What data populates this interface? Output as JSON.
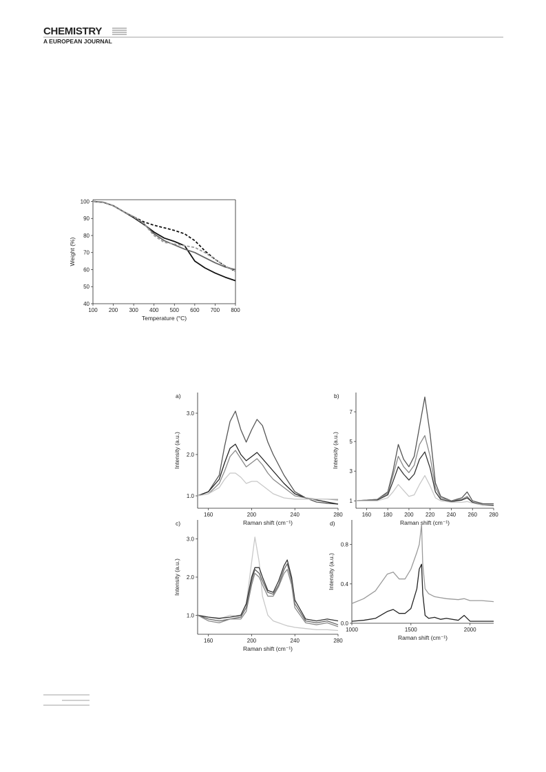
{
  "header": {
    "journal": "CHEMISTRY",
    "subtitle": "A EUROPEAN JOURNAL"
  },
  "chart_data": [
    {
      "type": "line",
      "x_label": "Temperature (°C)",
      "y_label": "Weight (%)",
      "x": [
        100,
        150,
        200,
        250,
        300,
        350,
        400,
        450,
        500,
        550,
        600,
        650,
        700,
        750,
        800
      ],
      "xlim": [
        100,
        800
      ],
      "ylim": [
        40,
        101
      ],
      "xticks": [
        100,
        200,
        300,
        400,
        500,
        600,
        700,
        800
      ],
      "yticks": [
        40,
        50,
        60,
        70,
        80,
        90,
        100
      ],
      "series": [
        {
          "color": "#111111",
          "style": "dashed",
          "values": [
            100,
            99.5,
            97.5,
            94,
            91,
            88,
            86,
            84.5,
            83,
            81,
            77,
            71,
            66,
            62,
            59
          ]
        },
        {
          "color": "#111111",
          "style": "solid",
          "values": [
            100,
            99.5,
            97.5,
            94,
            90.5,
            86.5,
            82,
            78.5,
            76.5,
            74,
            65,
            61,
            58,
            55.5,
            53.5
          ]
        },
        {
          "color": "#666666",
          "style": "solid",
          "values": [
            100,
            99.5,
            97.5,
            94,
            91,
            87,
            81,
            77,
            74.5,
            72,
            70,
            67,
            64,
            61.5,
            60
          ]
        },
        {
          "color": "#999999",
          "style": "dashed",
          "values": [
            100,
            99.5,
            97.5,
            94,
            91,
            87,
            80,
            76,
            75,
            74,
            73,
            70,
            66,
            62,
            59
          ]
        }
      ]
    },
    {
      "type": "line",
      "annotation": "a)",
      "x_label": "Raman shift (cm⁻¹)",
      "y_label": "Intensity (a.u.)",
      "x": [
        150,
        160,
        170,
        175,
        180,
        185,
        190,
        195,
        200,
        205,
        210,
        215,
        220,
        230,
        240,
        250,
        260,
        270,
        280
      ],
      "xlim": [
        150,
        280
      ],
      "ylim": [
        0.7,
        3.5
      ],
      "xticks": [
        160,
        200,
        240,
        280
      ],
      "yticks": [
        {
          "value": 1,
          "label": "1.0"
        },
        {
          "value": 2,
          "label": "2.0"
        },
        {
          "value": 3,
          "label": "3.0"
        }
      ],
      "series": [
        {
          "color": "#555555",
          "style": "solid",
          "values": [
            1.0,
            1.1,
            1.5,
            2.2,
            2.8,
            3.05,
            2.6,
            2.3,
            2.6,
            2.85,
            2.7,
            2.3,
            2.0,
            1.5,
            1.1,
            0.95,
            0.85,
            0.82,
            0.8
          ]
        },
        {
          "color": "#222222",
          "style": "solid",
          "values": [
            1.0,
            1.1,
            1.4,
            1.8,
            2.15,
            2.25,
            2.0,
            1.85,
            1.95,
            2.05,
            1.9,
            1.75,
            1.6,
            1.3,
            1.05,
            0.95,
            0.9,
            0.85,
            0.8
          ]
        },
        {
          "color": "#888888",
          "style": "solid",
          "values": [
            1.0,
            1.05,
            1.3,
            1.6,
            1.95,
            2.1,
            1.9,
            1.7,
            1.8,
            1.9,
            1.75,
            1.55,
            1.4,
            1.2,
            1.0,
            0.95,
            0.92,
            0.92,
            0.9
          ]
        },
        {
          "color": "#c8c8c8",
          "style": "solid",
          "values": [
            1.0,
            1.05,
            1.2,
            1.4,
            1.55,
            1.55,
            1.45,
            1.3,
            1.35,
            1.35,
            1.25,
            1.15,
            1.05,
            0.95,
            0.92,
            0.92,
            0.92,
            0.92,
            0.92
          ]
        }
      ]
    },
    {
      "type": "line",
      "annotation": "b)",
      "x_label": "Raman shift (cm⁻¹)",
      "y_label": "Intensity (a.u.)",
      "x": [
        150,
        170,
        180,
        185,
        190,
        195,
        200,
        205,
        210,
        215,
        220,
        225,
        230,
        240,
        250,
        255,
        260,
        270,
        280
      ],
      "xlim": [
        150,
        280
      ],
      "ylim": [
        0.5,
        8.3
      ],
      "xticks": [
        160,
        180,
        200,
        220,
        240,
        260,
        280
      ],
      "yticks": [
        1,
        3,
        5,
        7
      ],
      "series": [
        {
          "color": "#555555",
          "style": "solid",
          "values": [
            1,
            1.1,
            1.6,
            3,
            4.8,
            3.8,
            3.3,
            4.0,
            6,
            8.0,
            5.5,
            2.2,
            1.3,
            1.0,
            1.2,
            1.6,
            1.0,
            0.8,
            0.8
          ]
        },
        {
          "color": "#888888",
          "style": "solid",
          "values": [
            1,
            1.1,
            1.5,
            2.7,
            4.0,
            3.3,
            2.9,
            3.4,
            4.8,
            5.4,
            4.0,
            1.9,
            1.2,
            1.0,
            1.1,
            1.3,
            0.9,
            0.75,
            0.7
          ]
        },
        {
          "color": "#333333",
          "style": "solid",
          "values": [
            1,
            1.05,
            1.4,
            2.3,
            3.3,
            2.8,
            2.4,
            2.8,
            3.8,
            4.3,
            3.2,
            1.6,
            1.1,
            0.95,
            1.05,
            1.2,
            0.9,
            0.7,
            0.7
          ]
        },
        {
          "color": "#c8c8c8",
          "style": "solid",
          "values": [
            1,
            1.0,
            1.2,
            1.6,
            2.1,
            1.7,
            1.3,
            1.4,
            2.1,
            2.7,
            2.0,
            1.2,
            1.0,
            0.9,
            0.9,
            0.95,
            0.85,
            0.7,
            0.65
          ]
        }
      ]
    },
    {
      "type": "line",
      "annotation": "c)",
      "x_label": "Raman shift (cm⁻¹)",
      "y_label": "Intensity (a.u.)",
      "x": [
        150,
        160,
        170,
        180,
        190,
        195,
        200,
        203,
        207,
        210,
        215,
        220,
        225,
        230,
        233,
        237,
        240,
        250,
        260,
        270,
        280
      ],
      "xlim": [
        150,
        280
      ],
      "ylim": [
        0.5,
        3.5
      ],
      "xticks": [
        160,
        200,
        240,
        280
      ],
      "yticks": [
        {
          "value": 1,
          "label": "1.0"
        },
        {
          "value": 2,
          "label": "2.0"
        },
        {
          "value": 3,
          "label": "3.0"
        }
      ],
      "series": [
        {
          "color": "#c8c8c8",
          "style": "solid",
          "values": [
            1.0,
            0.95,
            0.9,
            1.0,
            0.95,
            1.3,
            2.4,
            3.05,
            2.4,
            1.5,
            1.0,
            0.85,
            0.8,
            0.75,
            0.72,
            0.7,
            0.68,
            0.65,
            0.62,
            0.62,
            0.6
          ]
        },
        {
          "color": "#333333",
          "style": "solid",
          "values": [
            1.0,
            0.95,
            0.92,
            0.95,
            1.0,
            1.3,
            2.0,
            2.25,
            2.25,
            2.0,
            1.65,
            1.6,
            1.9,
            2.3,
            2.45,
            2.0,
            1.4,
            0.9,
            0.85,
            0.9,
            0.85
          ]
        },
        {
          "color": "#666666",
          "style": "solid",
          "values": [
            1.0,
            0.9,
            0.85,
            0.9,
            0.95,
            1.2,
            1.9,
            2.2,
            2.1,
            1.9,
            1.6,
            1.55,
            1.8,
            2.2,
            2.35,
            1.9,
            1.3,
            0.85,
            0.8,
            0.85,
            0.75
          ]
        },
        {
          "color": "#888888",
          "style": "solid",
          "values": [
            1.0,
            0.85,
            0.8,
            0.9,
            0.9,
            1.1,
            1.8,
            2.1,
            2.0,
            1.8,
            1.5,
            1.5,
            1.75,
            2.1,
            2.2,
            1.8,
            1.2,
            0.8,
            0.75,
            0.8,
            0.7
          ]
        }
      ]
    },
    {
      "type": "line",
      "annotation": "d)",
      "x_label": "Raman shift (cm⁻¹)",
      "y_label": "Intensity (a.u.)",
      "x": [
        1000,
        1100,
        1200,
        1300,
        1350,
        1400,
        1450,
        1500,
        1550,
        1570,
        1590,
        1600,
        1620,
        1650,
        1700,
        1750,
        1800,
        1900,
        1950,
        2000,
        2100,
        2200
      ],
      "xlim": [
        1000,
        2200
      ],
      "ylim": [
        0,
        1.05
      ],
      "xticks": [
        1000,
        1500,
        2000
      ],
      "yticks": [
        {
          "value": 0,
          "label": "0.0"
        },
        {
          "value": 0.4,
          "label": "0.4"
        },
        {
          "value": 0.8,
          "label": "0.8"
        }
      ],
      "series": [
        {
          "color": "#9a9a9a",
          "style": "solid",
          "values": [
            0.2,
            0.25,
            0.33,
            0.5,
            0.52,
            0.45,
            0.45,
            0.55,
            0.72,
            0.8,
            1.0,
            0.6,
            0.35,
            0.3,
            0.27,
            0.26,
            0.25,
            0.24,
            0.25,
            0.23,
            0.23,
            0.22
          ]
        },
        {
          "color": "#222222",
          "style": "solid",
          "values": [
            0.02,
            0.03,
            0.05,
            0.12,
            0.14,
            0.1,
            0.1,
            0.15,
            0.35,
            0.55,
            0.6,
            0.3,
            0.08,
            0.05,
            0.06,
            0.04,
            0.05,
            0.03,
            0.08,
            0.02,
            0.02,
            0.02
          ]
        }
      ]
    }
  ]
}
